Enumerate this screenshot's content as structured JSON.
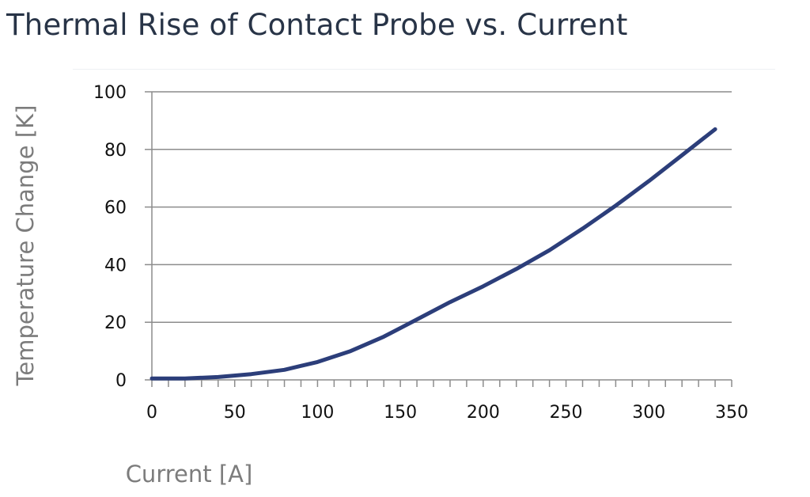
{
  "title": "Thermal Rise of Contact Probe vs. Current",
  "chart_data": {
    "type": "line",
    "xlabel": "Current [A]",
    "ylabel": "Temperature Change [K]",
    "xlim": [
      0,
      350
    ],
    "ylim": [
      0,
      100
    ],
    "xticks": [
      0,
      50,
      100,
      150,
      200,
      250,
      300,
      350
    ],
    "yticks": [
      0,
      20,
      40,
      60,
      80,
      100
    ],
    "grid": "horizontal",
    "series": [
      {
        "color": "#2c3e7a",
        "x": [
          0,
          20,
          40,
          60,
          80,
          100,
          120,
          140,
          160,
          180,
          200,
          220,
          240,
          260,
          280,
          300,
          320,
          340
        ],
        "y": [
          0.5,
          0.5,
          1.0,
          2.0,
          3.5,
          6.2,
          10.0,
          15.0,
          21.0,
          27.0,
          32.5,
          38.5,
          45.0,
          52.5,
          60.5,
          69.0,
          78.0,
          87.0
        ]
      }
    ]
  }
}
